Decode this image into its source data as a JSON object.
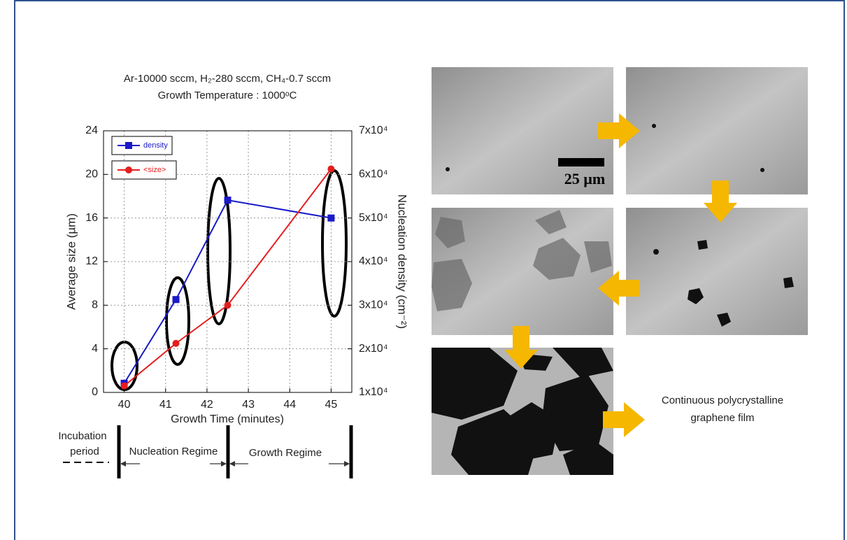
{
  "chart_data": {
    "type": "line",
    "title": [
      "Ar-10000 sccm, H₂-280 sccm, CH₄-0.7 sccm",
      "Growth Temperature : 1000ᵒC"
    ],
    "x_label": "Growth Time (minutes)",
    "y_label": "Average size (µm)",
    "y2_label": "Nucleation density (cm⁻²)",
    "x": [
      40,
      41.25,
      42.5,
      45
    ],
    "xlim": [
      39.5,
      45.5
    ],
    "xticks": [
      40,
      41,
      42,
      43,
      44,
      45
    ],
    "ylim": [
      0,
      24
    ],
    "yticks": [
      0,
      4,
      8,
      12,
      16,
      20,
      24
    ],
    "y2lim": [
      10000,
      70000
    ],
    "y2ticks": [
      {
        "value": 10000,
        "label": "1x10⁴"
      },
      {
        "value": 20000,
        "label": "2x10⁴"
      },
      {
        "value": 30000,
        "label": "3x10⁴"
      },
      {
        "value": 40000,
        "label": "4x10⁴"
      },
      {
        "value": 50000,
        "label": "5x10⁴"
      },
      {
        "value": 60000,
        "label": "6x10⁴"
      },
      {
        "value": 70000,
        "label": "7x10⁴"
      }
    ],
    "grid": true,
    "series": [
      {
        "name": "density",
        "color": "#1a1ac8",
        "marker": "square",
        "axis": "y2",
        "values": [
          12100,
          31300,
          54100,
          50000
        ]
      },
      {
        "name": "<size>",
        "color": "#e41e1e",
        "marker": "circle",
        "values": [
          0.6,
          4.5,
          8.0,
          20.5
        ]
      }
    ],
    "regimes": [
      [
        "Incubation",
        "period"
      ],
      [
        "Nucleation Regime"
      ],
      [
        "Growth Regime"
      ]
    ]
  },
  "images": {
    "scale_bar": "25 µm",
    "caption": [
      "Continuous polycrystalline",
      "graphene film"
    ]
  }
}
